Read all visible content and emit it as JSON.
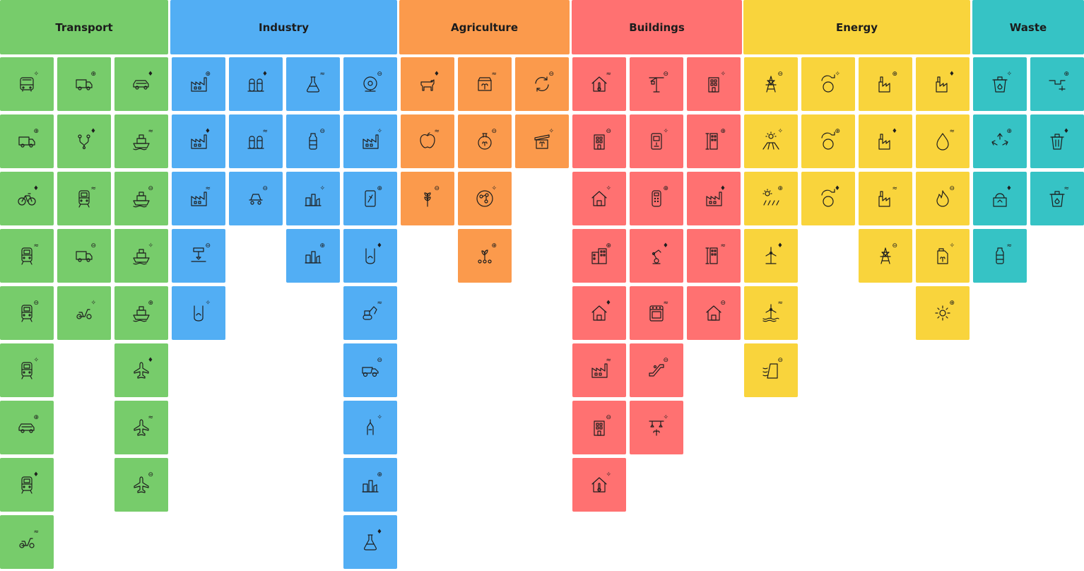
{
  "categories": [
    {
      "id": "transport",
      "label": "Transport",
      "color": "#77cc6b",
      "columns": [
        [
          "bus-icon",
          "delivery-truck-icon",
          "bicycle-icon",
          "electric-truck-icon",
          "train-icon",
          "ev-charging-icon",
          "car-icon",
          "electric-train-icon",
          "electric-motorbike-icon"
        ],
        [
          "delivery-van-icon",
          "route-pins-icon",
          "rail-car-icon",
          "van-icon",
          "cargo-bike-icon"
        ],
        [
          "green-pickup-icon",
          "cargo-ship-icon",
          "ferry-icon",
          "cruise-ship-icon",
          "passenger-ship-icon",
          "airplane-icon",
          "eco-airplane-icon",
          "airplane-takeoff-icon"
        ]
      ]
    },
    {
      "id": "industry",
      "label": "Industry",
      "color": "#52aef4",
      "columns": [
        [
          "factory-icon",
          "eco-factory-icon",
          "factory-water-icon",
          "3d-printer-icon",
          "water-treatment-icon"
        ],
        [
          "silos-icon",
          "green-silos-icon",
          "cement-mixer-icon"
        ],
        [
          "lab-flask-icon",
          "recycled-bottle-icon",
          "refinery-icon",
          "chemical-plant-icon"
        ],
        [
          "cable-reel-icon",
          "small-factory-icon",
          "smart-device-icon",
          "beaker-leaf-icon",
          "excavator-icon",
          "dump-truck-icon",
          "mining-drill-icon",
          "oil-refinery-icon",
          "chemistry-flask-icon"
        ]
      ]
    },
    {
      "id": "agriculture",
      "label": "Agriculture",
      "color": "#fb9a4c",
      "columns": [
        [
          "cow-icon",
          "apple-core-icon",
          "wheat-icon"
        ],
        [
          "seed-bag-icon",
          "fertilizer-flask-icon",
          "molecule-cycle-icon",
          "sprouts-icon"
        ],
        [
          "compost-cycle-icon",
          "crate-icon"
        ]
      ]
    },
    {
      "id": "buildings",
      "label": "Buildings",
      "color": "#ff7171",
      "columns": [
        [
          "home-thermostat-icon",
          "sunny-building-icon",
          "smart-home-icon",
          "apartment-block-icon",
          "warm-house-icon",
          "factory-heat-icon",
          "heated-building-icon",
          "home-temperature-icon"
        ],
        [
          "construction-crane-icon",
          "water-dispenser-icon",
          "payment-terminal-icon",
          "robotic-arm-icon",
          "stove-icon",
          "escalator-icon",
          "smart-lighting-icon"
        ],
        [
          "green-building-icon",
          "tall-building-icon",
          "factory-building-icon",
          "office-tower-icon",
          "measured-house-icon"
        ]
      ]
    },
    {
      "id": "energy",
      "label": "Energy",
      "color": "#f9d43c",
      "columns": [
        [
          "power-pylon-icon",
          "solar-panels-icon",
          "solar-farm-icon",
          "wind-turbine-icon",
          "offshore-wind-icon",
          "hydro-dam-icon"
        ],
        [
          "heat-cycle-icon",
          "energy-cycle-icon",
          "bio-cycle-icon"
        ],
        [
          "power-plant-icon",
          "bio-power-plant-icon",
          "nuclear-plant-icon",
          "transmission-tower-icon"
        ],
        [
          "eco-power-plant-icon",
          "water-energy-icon",
          "gas-flame-icon",
          "biofuel-can-icon",
          "sun-heat-icon"
        ]
      ]
    },
    {
      "id": "waste",
      "label": "Waste",
      "color": "#36c3c5",
      "columns": [
        [
          "waste-bin-icon",
          "recycle-icon",
          "sorting-bin-icon",
          "recyclable-bottle-icon"
        ],
        [
          "waste-pipe-icon",
          "trash-can-icon",
          "compost-bin-icon"
        ]
      ]
    }
  ]
}
